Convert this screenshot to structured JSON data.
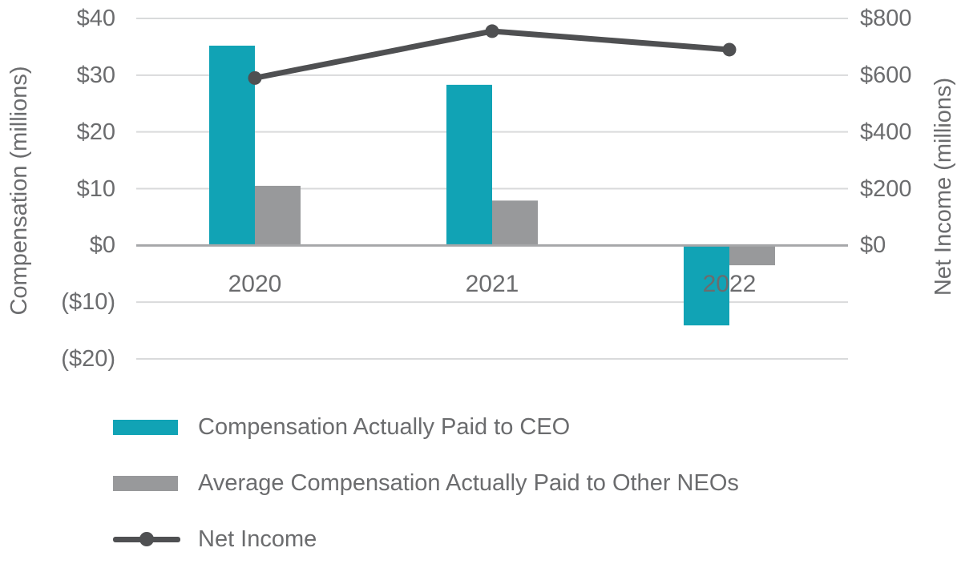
{
  "chart_data": {
    "type": "bar+line combo",
    "categories": [
      "2020",
      "2021",
      "2022"
    ],
    "series": [
      {
        "name": "Compensation Actually Paid to CEO",
        "type": "bar",
        "axis": "left",
        "color": "#11A3B5",
        "values": [
          35.2,
          28.3,
          -14.1
        ]
      },
      {
        "name": "Average Compensation Actually Paid to Other NEOs",
        "type": "bar",
        "axis": "left",
        "color": "#98999B",
        "values": [
          10.5,
          7.9,
          -3.5
        ]
      },
      {
        "name": "Net Income",
        "type": "line",
        "axis": "right",
        "color": "#4F5052",
        "values": [
          590,
          755,
          690
        ]
      }
    ],
    "left_axis": {
      "title": "Compensation (millions)",
      "ticks": [
        "$40",
        "$30",
        "$20",
        "$10",
        "$0",
        "($10)",
        "($20)"
      ],
      "tick_values": [
        40,
        30,
        20,
        10,
        0,
        -10,
        -20
      ],
      "min": -20,
      "max": 40
    },
    "right_axis": {
      "title": "Net Income (millions)",
      "ticks": [
        "$800",
        "$600",
        "$400",
        "$200",
        "$0"
      ],
      "tick_values": [
        800,
        600,
        400,
        200,
        0
      ],
      "labeled_min": 0,
      "max": 800,
      "min": -400
    },
    "grid": true,
    "legend_position": "bottom-left",
    "colors": {
      "gridline": "#D9DADB",
      "zero_line": "#A6A7A9",
      "axis_text": "#6B6C6E"
    }
  }
}
